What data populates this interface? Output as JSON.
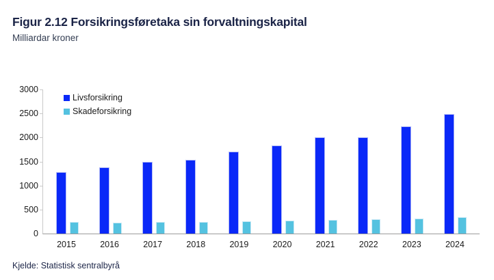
{
  "header": {
    "title": "Figur 2.12 Forsikringsføretaka sin forvaltningskapital",
    "subtitle": "Milliardar kroner"
  },
  "footer": {
    "source": "Kjelde: Statistisk sentralbyrå"
  },
  "colors": {
    "title_text": "#1b2447",
    "axis_line": "#c9c9c9",
    "baseline": "#9b9b9b",
    "tick_label": "#1a1a1a",
    "livsforsikring": "#0a28f8",
    "skadeforsikring": "#54c2e0"
  },
  "chart_data": {
    "type": "bar",
    "title": "Figur 2.12 Forsikringsføretaka sin forvaltningskapital",
    "subtitle": "Milliardar kroner",
    "categories": [
      "2015",
      "2016",
      "2017",
      "2018",
      "2019",
      "2020",
      "2021",
      "2022",
      "2023",
      "2024"
    ],
    "series": [
      {
        "name": "Livsforsikring",
        "color": "#0a28f8",
        "values": [
          1280,
          1380,
          1500,
          1540,
          1705,
          1830,
          2010,
          2000,
          2240,
          2490
        ]
      },
      {
        "name": "Skadeforsikring",
        "color": "#54c2e0",
        "values": [
          240,
          235,
          245,
          245,
          260,
          275,
          285,
          295,
          315,
          335
        ]
      }
    ],
    "xlabel": "",
    "ylabel": "Milliardar kroner",
    "ylim": [
      0,
      3000
    ],
    "yticks": [
      0,
      500,
      1000,
      1500,
      2000,
      2500,
      3000
    ],
    "grid": false,
    "legend_position": "top-left",
    "source": "Kjelde: Statistisk sentralbyrå"
  }
}
